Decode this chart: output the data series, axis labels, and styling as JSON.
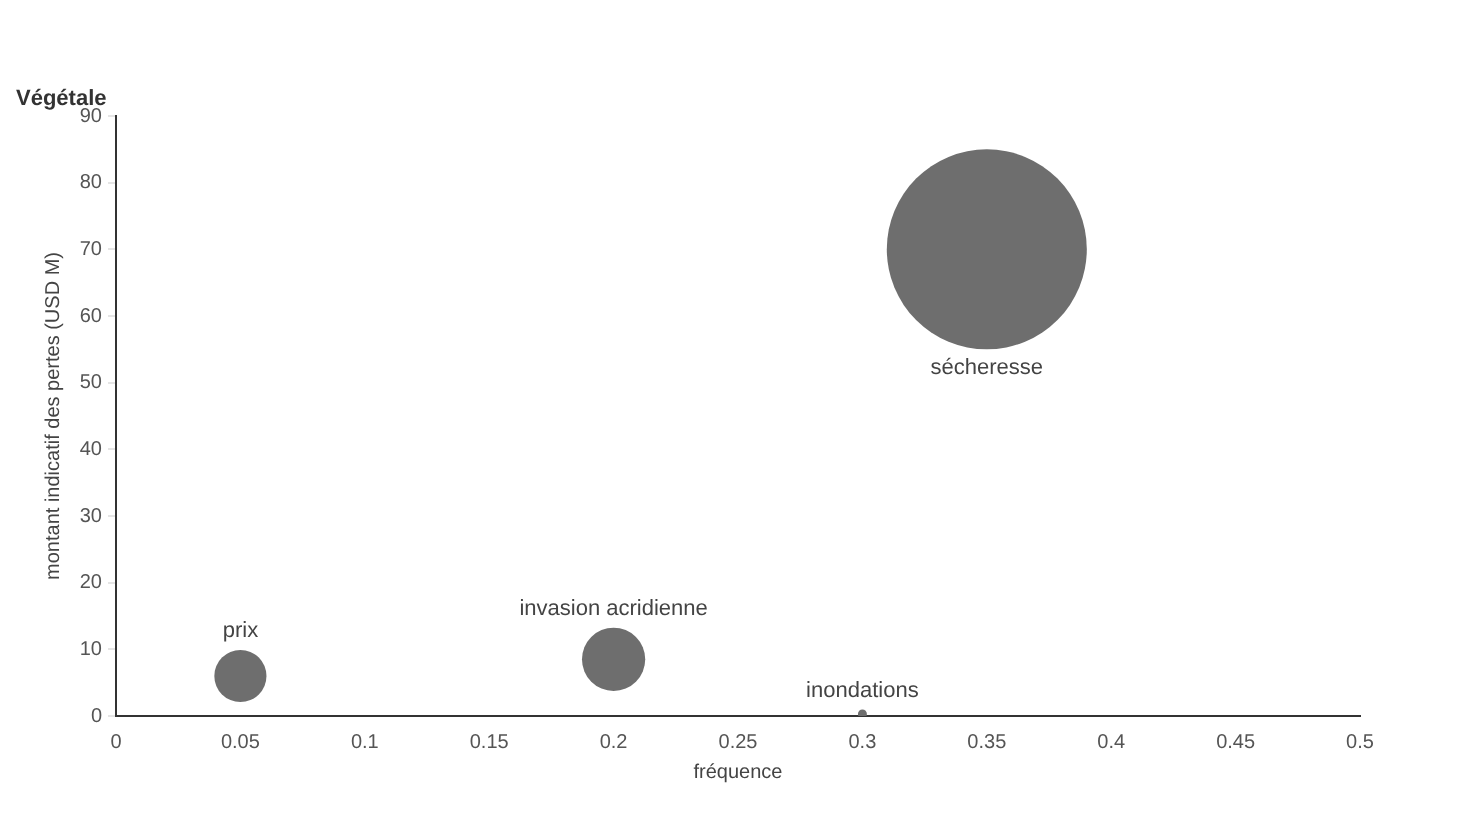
{
  "chart_data": {
    "type": "bubble",
    "title": "Végétale",
    "xlabel": "fréquence",
    "ylabel": "montant indicatif des pertes (USD M)",
    "x": [
      0.05,
      0.2,
      0.3,
      0.35
    ],
    "values": [
      6,
      8.5,
      0.3,
      70
    ],
    "sizes": [
      0.068,
      0.1,
      0.002,
      1
    ],
    "color": "#6e6e6e",
    "annotations": [
      "prix",
      "invasion acridienne",
      "inondations",
      "sécheresse"
    ],
    "xlim": [
      0,
      0.5
    ],
    "xticks": [
      0,
      0.05,
      0.1,
      0.15,
      0.2,
      0.25,
      0.3,
      0.35,
      0.4,
      0.45,
      0.5
    ],
    "ylim": [
      0,
      90
    ],
    "yticks": [
      0,
      10,
      20,
      30,
      40,
      50,
      60,
      70,
      80,
      90
    ],
    "grid": false,
    "legend": false
  }
}
